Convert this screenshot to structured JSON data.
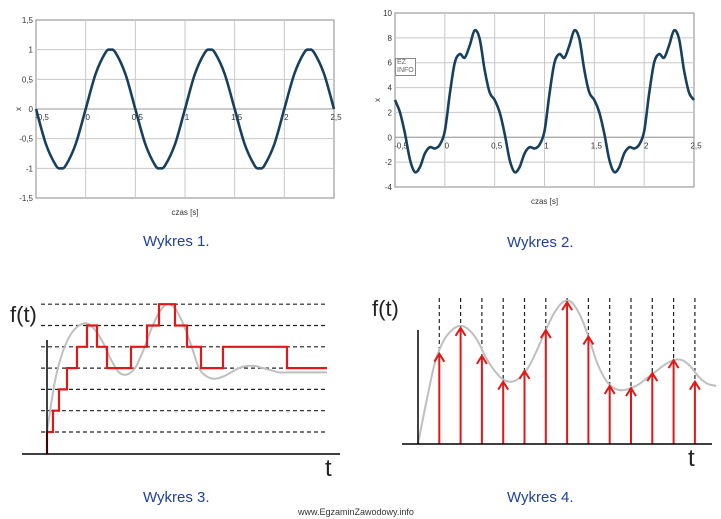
{
  "captions": [
    "Wykres 1.",
    "Wykres 2.",
    "Wykres 3.",
    "Wykres 4."
  ],
  "footer": "www.EgzaminZawodowy.info",
  "logo": [
    "EZ",
    "INFO"
  ],
  "colors": {
    "curve": "#17405f",
    "grid": "#c8c8c8",
    "frame": "#8a8a8a",
    "sample": "#e01818",
    "analog": "#bfbfbf",
    "caption": "#1f3f9a"
  },
  "chart_data": [
    {
      "type": "line",
      "xlabel": "czas [s]",
      "ylabel": "x",
      "xlim": [
        -0.5,
        2.5
      ],
      "ylim": [
        -1.5,
        1.5
      ],
      "xticks": [
        "-0,5",
        "0",
        "0,5",
        "1",
        "1,5",
        "2",
        "2,5"
      ],
      "yticks": [
        "1,5",
        "1",
        "0,5",
        "0",
        "-0,5",
        "-1",
        "-1,5"
      ],
      "grid": true,
      "series": [
        {
          "x": [
            -0.5,
            -0.4,
            -0.3,
            -0.25,
            -0.2,
            -0.1,
            0,
            0.1,
            0.2,
            0.25,
            0.3,
            0.4,
            0.5,
            0.6,
            0.7,
            0.75,
            0.8,
            0.9,
            1.0,
            1.1,
            1.2,
            1.25,
            1.3,
            1.4,
            1.5,
            1.6,
            1.7,
            1.75,
            1.8,
            1.9,
            2.0,
            2.1,
            2.2,
            2.25,
            2.3,
            2.4,
            2.5
          ],
          "y": [
            0,
            -0.59,
            -0.95,
            -1,
            -0.95,
            -0.59,
            0,
            0.59,
            0.95,
            1,
            0.95,
            0.59,
            0,
            -0.59,
            -0.95,
            -1,
            -0.95,
            -0.59,
            0,
            0.59,
            0.95,
            1,
            0.95,
            0.59,
            0,
            -0.59,
            -0.95,
            -1,
            -0.95,
            -0.59,
            0,
            0.59,
            0.95,
            1,
            0.95,
            0.59,
            0
          ]
        }
      ]
    },
    {
      "type": "line",
      "xlabel": "czas [s]",
      "ylabel": "x",
      "xlim": [
        -0.5,
        2.5
      ],
      "ylim": [
        -4,
        10
      ],
      "xticks": [
        "-0,5",
        "0",
        "0,5",
        "1",
        "1,5",
        "2",
        "2,5"
      ],
      "yticks": [
        "10",
        "8",
        "6",
        "4",
        "2",
        "0",
        "-2",
        "-4"
      ],
      "grid": true,
      "series": [
        {
          "x": [
            -0.5,
            -0.45,
            -0.4,
            -0.35,
            -0.3,
            -0.25,
            -0.2,
            -0.15,
            -0.1,
            -0.05,
            0,
            0.05,
            0.1,
            0.15,
            0.2,
            0.25,
            0.3,
            0.35,
            0.4,
            0.45,
            0.5,
            0.55,
            0.6,
            0.65,
            0.7,
            0.75,
            0.8,
            0.85,
            0.9,
            0.95,
            1.0,
            1.05,
            1.1,
            1.15,
            1.2,
            1.25,
            1.3,
            1.35,
            1.4,
            1.45,
            1.5,
            1.55,
            1.6,
            1.65,
            1.7,
            1.75,
            1.8,
            1.85,
            1.9,
            1.95,
            2.0,
            2.05,
            2.1,
            2.15,
            2.2,
            2.25,
            2.3,
            2.35,
            2.4,
            2.45,
            2.5
          ],
          "y": [
            3,
            2.0,
            0.3,
            -1.8,
            -2.8,
            -2.4,
            -1.3,
            -0.8,
            -0.9,
            -0.6,
            0.5,
            3.5,
            6.0,
            6.7,
            6.4,
            7.4,
            8.6,
            7.9,
            5.4,
            3.6,
            3.0,
            2.0,
            0.3,
            -1.8,
            -2.8,
            -2.4,
            -1.3,
            -0.8,
            -0.9,
            -0.6,
            0.5,
            3.5,
            6.0,
            6.7,
            6.4,
            7.4,
            8.6,
            7.9,
            5.4,
            3.6,
            3.0,
            2.0,
            0.3,
            -1.8,
            -2.8,
            -2.4,
            -1.3,
            -0.8,
            -0.9,
            -0.6,
            0.5,
            3.5,
            6.0,
            6.7,
            6.4,
            7.4,
            8.6,
            7.9,
            5.4,
            3.6,
            3.0
          ]
        }
      ]
    },
    {
      "type": "line",
      "xlabel": "t",
      "ylabel": "f(t)",
      "levels": 7,
      "grid": "dashed quantization levels",
      "series": [
        {
          "t": [
            0,
            0.2,
            0.4,
            0.6,
            0.8,
            1.0,
            1.2,
            1.4,
            1.6,
            1.8,
            2.0,
            2.2,
            2.4,
            2.6,
            2.8,
            3.0,
            3.2,
            3.4,
            3.6,
            3.8,
            4.0,
            4.2,
            4.4,
            4.6,
            4.8,
            5.0,
            5.2,
            5.4,
            5.6,
            5.8,
            6.0,
            6.2,
            6.4,
            6.6,
            6.8,
            7.0
          ],
          "value": [
            0.0,
            2.4,
            3.8,
            4.6,
            5.0,
            5.1,
            4.8,
            4.2,
            3.4,
            2.8,
            2.7,
            3.0,
            3.8,
            4.8,
            5.6,
            6.0,
            5.8,
            5.1,
            4.1,
            3.0,
            2.6,
            2.5,
            2.6,
            2.8,
            3.0,
            3.1,
            3.1,
            3.0,
            2.9,
            2.8,
            2.8,
            2.8,
            2.8,
            2.8,
            2.8,
            2.8
          ]
        },
        {
          "t": [
            0,
            0.15,
            0.15,
            0.3,
            0.3,
            0.5,
            0.5,
            0.75,
            0.75,
            1.0,
            1.0,
            1.25,
            1.25,
            1.5,
            1.5,
            2.1,
            2.1,
            2.5,
            2.5,
            2.8,
            2.8,
            3.2,
            3.2,
            3.5,
            3.5,
            3.85,
            3.85,
            4.4,
            4.4,
            6.0,
            6.0,
            7.0
          ],
          "value": [
            0,
            0,
            1,
            1,
            2,
            2,
            3,
            3,
            4,
            4,
            5,
            5,
            4,
            4,
            3,
            3,
            4,
            4,
            5,
            5,
            6,
            6,
            5,
            5,
            4,
            4,
            3,
            3,
            4,
            4,
            3,
            3
          ]
        }
      ]
    },
    {
      "type": "line",
      "xlabel": "t",
      "ylabel": "f(t)",
      "grid": "dashed sampling instants",
      "series": [
        {
          "t": [
            0,
            0.2,
            0.4,
            0.6,
            0.8,
            1.0,
            1.2,
            1.4,
            1.6,
            1.8,
            2.0,
            2.2,
            2.4,
            2.6,
            2.8,
            3.0,
            3.2,
            3.4,
            3.6,
            3.8,
            4.0,
            4.2,
            4.4,
            4.6,
            4.8,
            5.0,
            5.2,
            5.4,
            5.6,
            5.8,
            6.0,
            6.2,
            6.4,
            6.6,
            6.8,
            7.0
          ],
          "value": [
            0,
            2.0,
            3.8,
            4.8,
            5.3,
            5.5,
            5.3,
            4.8,
            4.0,
            3.4,
            3.0,
            2.9,
            3.1,
            3.6,
            4.4,
            5.3,
            6.1,
            6.6,
            6.6,
            6.0,
            5.0,
            3.8,
            3.0,
            2.6,
            2.5,
            2.6,
            2.8,
            3.1,
            3.4,
            3.7,
            3.9,
            3.9,
            3.6,
            3.1,
            2.8,
            2.7
          ]
        },
        {
          "t": [
            0.5,
            1.0,
            1.5,
            2.0,
            2.5,
            3.0,
            3.5,
            4.0,
            4.5,
            5.0,
            5.5,
            6.0,
            6.5
          ],
          "value": [
            4.2,
            5.4,
            4.1,
            2.9,
            3.4,
            5.3,
            6.6,
            5.0,
            2.7,
            2.6,
            3.3,
            3.9,
            2.9
          ]
        }
      ]
    }
  ]
}
